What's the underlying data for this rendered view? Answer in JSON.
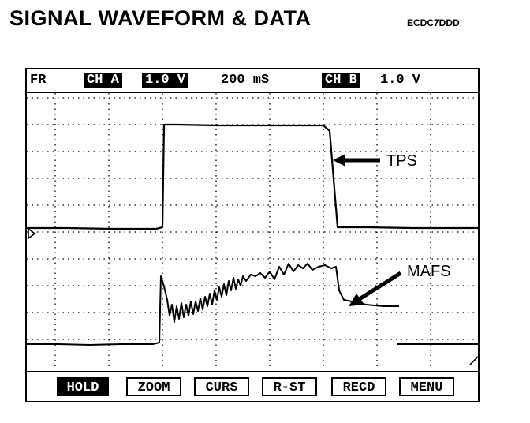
{
  "header": {
    "title": "SIGNAL WAVEFORM & DATA",
    "code": "ECDC7DDD"
  },
  "status": {
    "mode": "FR",
    "ch_a_label": "CH A",
    "ch_a_scale": "1.0 V",
    "timebase": "200 mS",
    "ch_b_label": "CH B",
    "ch_b_scale": "1.0 V"
  },
  "annotations": {
    "tps": "TPS",
    "mafs": "MAFS"
  },
  "menu": {
    "hold": "HOLD",
    "zoom": "ZOOM",
    "curs": "CURS",
    "rst": "R-ST",
    "recd": "RECD",
    "menu": "MENU"
  },
  "colors": {
    "foreground": "#000000",
    "background": "#ffffff"
  }
}
